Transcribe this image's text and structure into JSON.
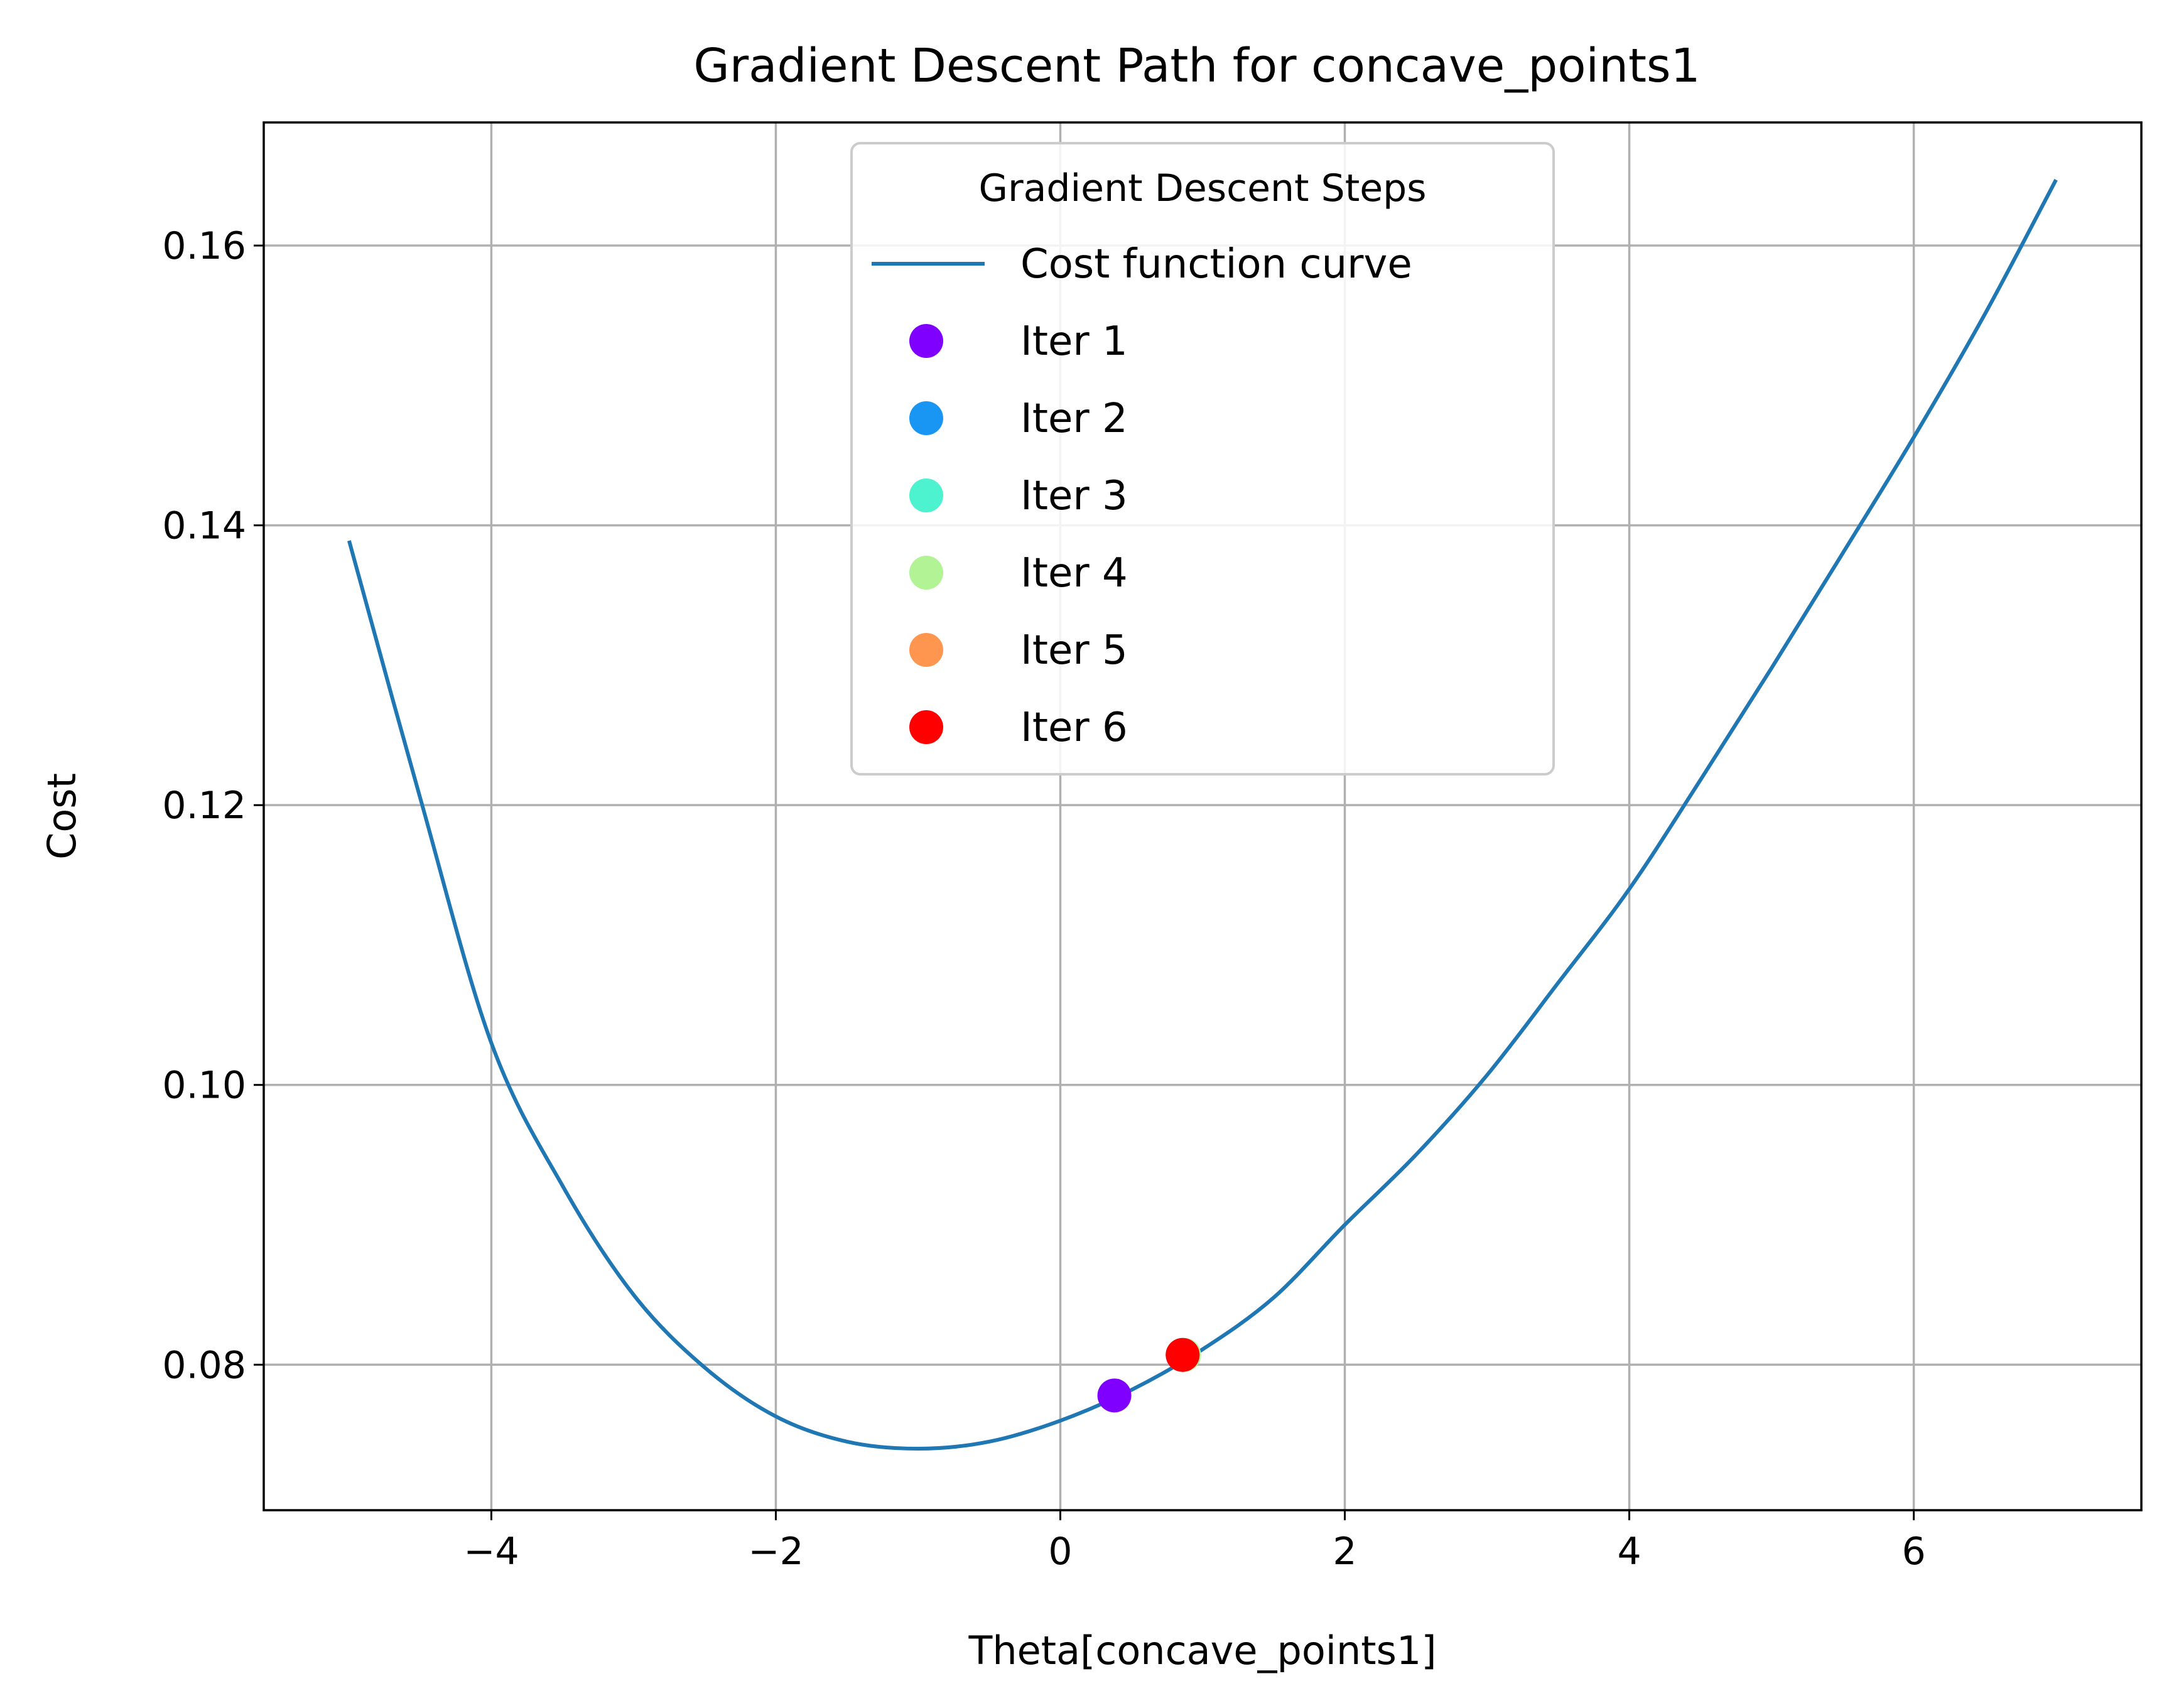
{
  "chart_data": {
    "type": "line",
    "title": "Gradient Descent Path for concave_points1",
    "xlabel": "Theta[concave_points1]",
    "ylabel": "Cost",
    "xlim": [
      -5.6,
      7.6
    ],
    "ylim": [
      0.0696,
      0.1688
    ],
    "x_ticks": [
      -4,
      -2,
      0,
      2,
      4,
      6
    ],
    "x_tick_labels": [
      "−4",
      "−2",
      "0",
      "2",
      "4",
      "6"
    ],
    "y_ticks": [
      0.08,
      0.1,
      0.12,
      0.14,
      0.16
    ],
    "y_tick_labels": [
      "0.08",
      "0.10",
      "0.12",
      "0.14",
      "0.16"
    ],
    "grid": true,
    "legend": {
      "title": "Gradient Descent Steps",
      "placement": "top-center"
    },
    "curve": {
      "name": "Cost function curve",
      "color": "#1f77b4",
      "points": [
        [
          -5.0,
          0.1389
        ],
        [
          -4.5,
          0.1205
        ],
        [
          -4.0,
          0.103
        ],
        [
          -3.5,
          0.0928
        ],
        [
          -3.0,
          0.085
        ],
        [
          -2.5,
          0.0798
        ],
        [
          -2.0,
          0.0763
        ],
        [
          -1.5,
          0.0745
        ],
        [
          -1.0,
          0.074
        ],
        [
          -0.5,
          0.0745
        ],
        [
          0.0,
          0.076
        ],
        [
          0.5,
          0.0782
        ],
        [
          1.0,
          0.0811
        ],
        [
          1.5,
          0.0848
        ],
        [
          2.0,
          0.09
        ],
        [
          2.5,
          0.095
        ],
        [
          3.0,
          0.1007
        ],
        [
          3.5,
          0.1073
        ],
        [
          4.0,
          0.114
        ],
        [
          4.5,
          0.1218
        ],
        [
          5.0,
          0.1298
        ],
        [
          5.5,
          0.138
        ],
        [
          6.0,
          0.1463
        ],
        [
          6.5,
          0.1551
        ],
        [
          7.0,
          0.1647
        ]
      ]
    },
    "series": [
      {
        "name": "Iter 1",
        "color": "#8000ff",
        "x": 0.38,
        "y": 0.0778
      },
      {
        "name": "Iter 2",
        "color": "#1996f3",
        "x": 0.86,
        "y": 0.0807
      },
      {
        "name": "Iter 3",
        "color": "#4df3ce",
        "x": 0.87,
        "y": 0.0807
      },
      {
        "name": "Iter 4",
        "color": "#b2f396",
        "x": 0.87,
        "y": 0.0807
      },
      {
        "name": "Iter 5",
        "color": "#ff964f",
        "x": 0.86,
        "y": 0.0807
      },
      {
        "name": "Iter 6",
        "color": "#ff0000",
        "x": 0.86,
        "y": 0.0807
      }
    ]
  }
}
